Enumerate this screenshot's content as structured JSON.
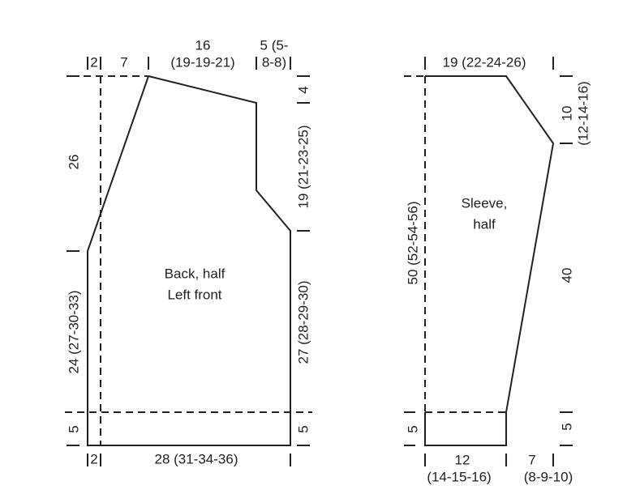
{
  "back": {
    "label": [
      "Back, half",
      "Left front"
    ],
    "top": {
      "edge": "2",
      "shoulder_slope": "7",
      "neck": [
        "16",
        "(19-19-21)"
      ],
      "neck_edge": [
        "5 (5-",
        "8-8)"
      ]
    },
    "right": {
      "neck_depth": "4",
      "neck_shaping": "19 (21-23-25)",
      "body": "27 (28-29-30)",
      "rib": "5"
    },
    "left": {
      "upper": "26",
      "body": "24 (27-30-33)",
      "rib": "5"
    },
    "bottom": {
      "edge": "2",
      "width": "28 (31-34-36)"
    }
  },
  "sleeve": {
    "label": [
      "Sleeve,",
      "half"
    ],
    "top": "19 (22-24-26)",
    "right": {
      "cap": [
        "10",
        "(12-14-16)"
      ],
      "body": "40",
      "rib": "5"
    },
    "left": {
      "length": "50 (52-54-56)",
      "rib": "5"
    },
    "bottom": {
      "width": [
        "12",
        "(14-15-16)"
      ],
      "increase": [
        "7",
        "(8-9-10)"
      ]
    }
  }
}
